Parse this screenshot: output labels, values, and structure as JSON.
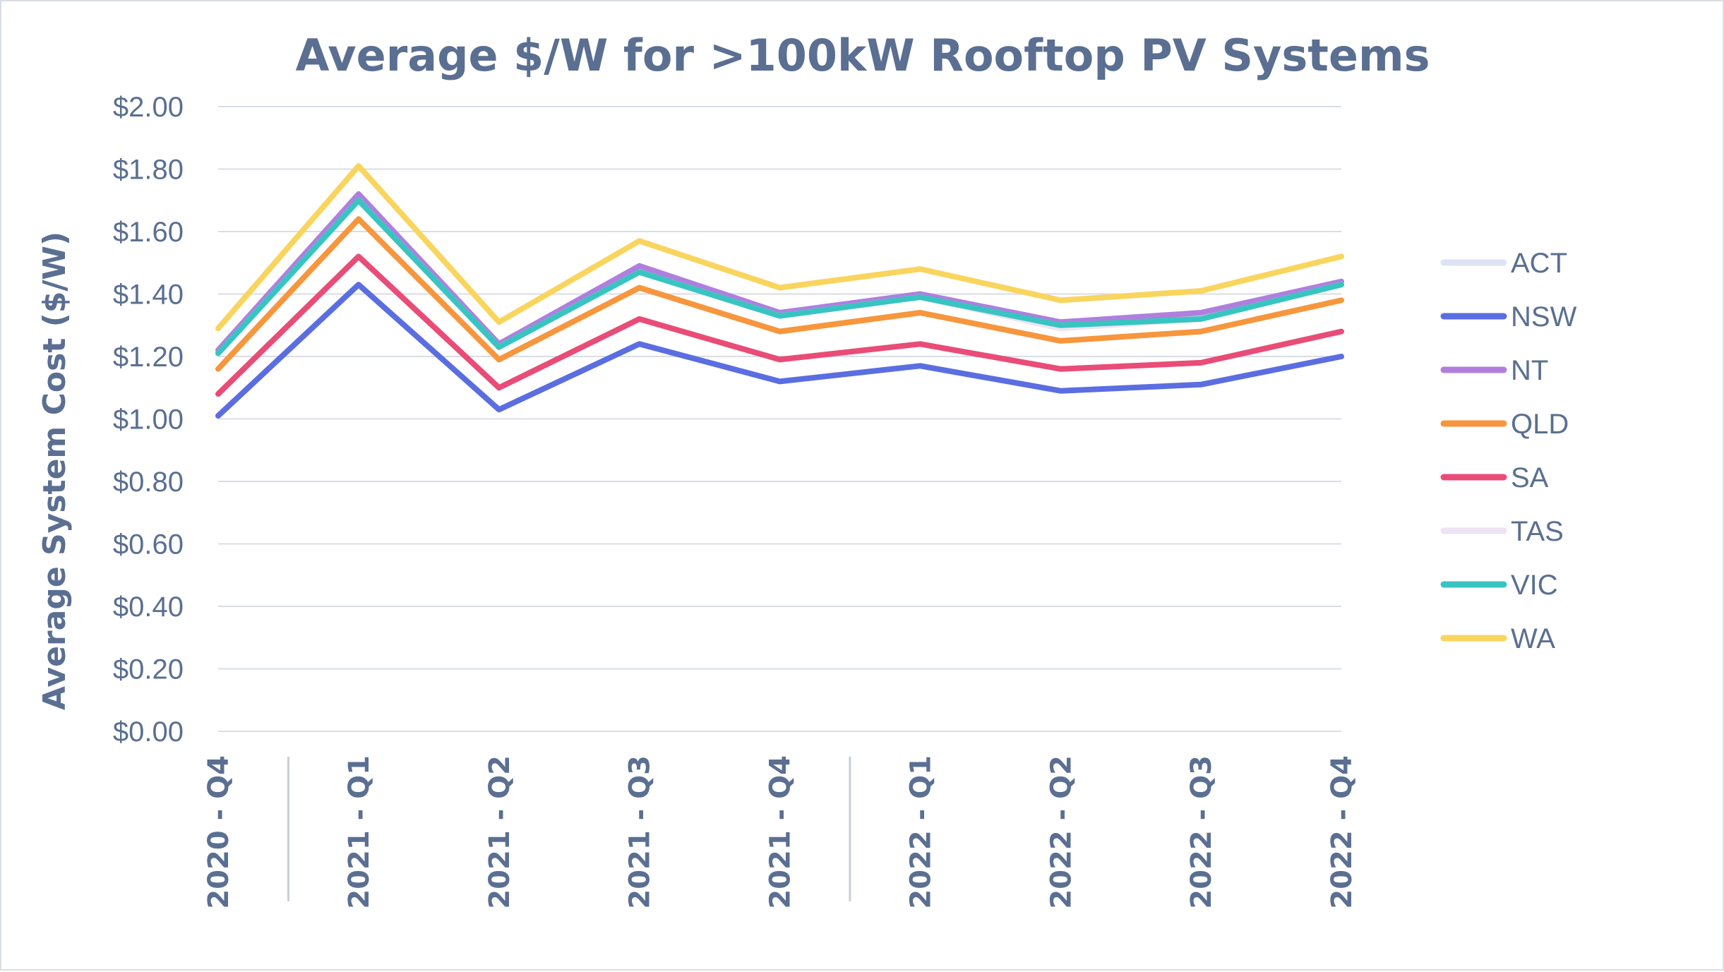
{
  "chart_data": {
    "type": "line",
    "title": "Average $/W for >100kW Rooftop PV Systems",
    "xlabel": "",
    "ylabel": "Average System Cost ($/W)",
    "ylim": [
      0,
      2
    ],
    "yticks": [
      0,
      0.2,
      0.4,
      0.6,
      0.8,
      1.0,
      1.2,
      1.4,
      1.6,
      1.8,
      2.0
    ],
    "ytick_labels": [
      "$0.00",
      "$0.20",
      "$0.40",
      "$0.60",
      "$0.80",
      "$1.00",
      "$1.20",
      "$1.40",
      "$1.60",
      "$1.80",
      "$2.00"
    ],
    "categories": [
      "2020 - Q4",
      "2021 - Q1",
      "2021 - Q2",
      "2021 - Q3",
      "2021 - Q4",
      "2022 - Q1",
      "2022 - Q2",
      "2022 - Q3",
      "2022 - Q4"
    ],
    "grid": true,
    "legend_position": "right",
    "series": [
      {
        "name": "ACT",
        "color": "#dde3f3",
        "values": [
          1.22,
          1.71,
          1.24,
          1.48,
          1.34,
          1.4,
          1.3,
          1.33,
          1.44
        ]
      },
      {
        "name": "NSW",
        "color": "#5b6ee1",
        "values": [
          1.01,
          1.43,
          1.03,
          1.24,
          1.12,
          1.17,
          1.09,
          1.11,
          1.2
        ]
      },
      {
        "name": "NT",
        "color": "#b07fde",
        "values": [
          1.22,
          1.72,
          1.24,
          1.49,
          1.34,
          1.4,
          1.31,
          1.34,
          1.44
        ]
      },
      {
        "name": "QLD",
        "color": "#f7963c",
        "values": [
          1.16,
          1.64,
          1.19,
          1.42,
          1.28,
          1.34,
          1.25,
          1.28,
          1.38
        ]
      },
      {
        "name": "SA",
        "color": "#e94c77",
        "values": [
          1.08,
          1.52,
          1.1,
          1.32,
          1.19,
          1.24,
          1.16,
          1.18,
          1.28
        ]
      },
      {
        "name": "TAS",
        "color": "#ede3f3",
        "values": [
          1.21,
          1.7,
          1.23,
          1.47,
          1.33,
          1.39,
          1.29,
          1.32,
          1.43
        ]
      },
      {
        "name": "VIC",
        "color": "#38c5c1",
        "values": [
          1.21,
          1.7,
          1.23,
          1.47,
          1.33,
          1.39,
          1.3,
          1.32,
          1.43
        ]
      },
      {
        "name": "WA",
        "color": "#f9d55e",
        "values": [
          1.29,
          1.81,
          1.31,
          1.57,
          1.42,
          1.48,
          1.38,
          1.41,
          1.52
        ]
      }
    ]
  }
}
